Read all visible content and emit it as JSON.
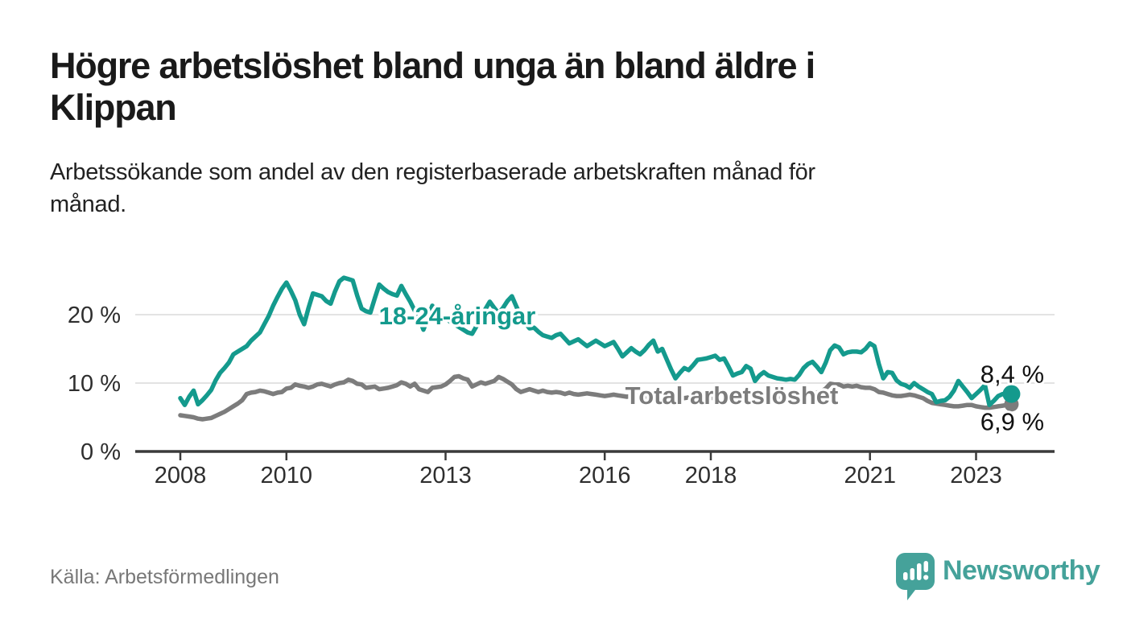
{
  "header": {
    "title": "Högre arbetslöshet bland unga än bland äldre i\nKlippan",
    "subtitle": "Arbetssökande som andel av den registerbaserade arbetskraften månad för\nmånad."
  },
  "footer": {
    "source_label": "Källa: Arbetsförmedlingen",
    "brand": {
      "name": "Newsworthy",
      "icon": "newsworthy-speech-bubble-bar-chart-icon",
      "color": "#45a29a"
    }
  },
  "chart_data": {
    "type": "line",
    "title": "Högre arbetslöshet bland unga än bland äldre i Klippan",
    "x_unit": "month",
    "x_start_year": 2008,
    "x_end_label_year": 2023.67,
    "xlabel": "",
    "ylabel": "Arbetssökande som andel av den registerbaserade arbetskraften",
    "ylim": [
      0,
      27
    ],
    "grid": true,
    "legend_position": "inline-labels",
    "axis_color": "#3a3a3a",
    "grid_color": "#dadada",
    "tick_label_color": "#2e2e2e",
    "value_label_color": "#111111",
    "y_ticks": [
      {
        "value": 0,
        "label": "0 %"
      },
      {
        "value": 10,
        "label": "10 %"
      },
      {
        "value": 20,
        "label": "20 %"
      }
    ],
    "x_ticks": [
      {
        "year": 2008,
        "label": "2008"
      },
      {
        "year": 2010,
        "label": "2010"
      },
      {
        "year": 2013,
        "label": "2013"
      },
      {
        "year": 2016,
        "label": "2016"
      },
      {
        "year": 2018,
        "label": "2018"
      },
      {
        "year": 2021,
        "label": "2021"
      },
      {
        "year": 2023,
        "label": "2023"
      }
    ],
    "series": [
      {
        "name": "Total arbetslöshet",
        "color": "#7c7c7c",
        "end_value": 6.9,
        "end_label": "6,9 %",
        "values": [
          5.3,
          5.2,
          5.1,
          5.0,
          4.8,
          4.7,
          4.8,
          4.9,
          5.2,
          5.5,
          5.8,
          6.2,
          6.6,
          7.0,
          7.5,
          8.4,
          8.6,
          8.7,
          8.9,
          8.8,
          8.6,
          8.4,
          8.6,
          8.7,
          9.2,
          9.3,
          9.8,
          9.6,
          9.5,
          9.3,
          9.5,
          9.8,
          9.9,
          9.7,
          9.5,
          9.8,
          10.0,
          10.1,
          10.5,
          10.3,
          9.9,
          9.8,
          9.3,
          9.4,
          9.5,
          9.1,
          9.2,
          9.3,
          9.5,
          9.7,
          10.1,
          9.9,
          9.5,
          9.9,
          9.1,
          8.9,
          8.7,
          9.3,
          9.4,
          9.5,
          9.8,
          10.3,
          10.9,
          11.0,
          10.7,
          10.5,
          9.5,
          9.8,
          10.1,
          9.9,
          10.1,
          10.3,
          10.9,
          10.6,
          10.2,
          9.8,
          9.1,
          8.7,
          8.9,
          9.1,
          8.9,
          8.7,
          8.9,
          8.7,
          8.6,
          8.7,
          8.6,
          8.4,
          8.6,
          8.4,
          8.3,
          8.4,
          8.5,
          8.4,
          8.3,
          8.2,
          8.1,
          8.2,
          8.3,
          8.2,
          8.1,
          8.0,
          8.1,
          8.2,
          8.1,
          8.0,
          7.9,
          8.0,
          8.0,
          8.1,
          8.0,
          7.9,
          7.8,
          7.9,
          7.8,
          7.9,
          7.8,
          7.9,
          7.8,
          7.9,
          7.8,
          7.9,
          7.8,
          7.7,
          7.6,
          7.7,
          7.8,
          7.7,
          7.8,
          7.7,
          7.8,
          7.9,
          7.8,
          7.9,
          7.8,
          7.9,
          8.0,
          7.9,
          8.0,
          8.1,
          8.0,
          8.1,
          8.2,
          8.3,
          8.6,
          8.8,
          9.2,
          9.9,
          9.8,
          9.8,
          9.5,
          9.6,
          9.5,
          9.6,
          9.4,
          9.3,
          9.3,
          9.1,
          8.7,
          8.6,
          8.4,
          8.2,
          8.1,
          8.1,
          8.2,
          8.3,
          8.2,
          8.0,
          7.8,
          7.4,
          7.1,
          7.0,
          6.9,
          6.8,
          6.7,
          6.6,
          6.6,
          6.7,
          6.8,
          6.8,
          6.6,
          6.5,
          6.4,
          6.4,
          6.5,
          6.6,
          6.7,
          6.8,
          6.9
        ]
      },
      {
        "name": "18-24-åringar",
        "color": "#149a8d",
        "end_value": 8.4,
        "end_label": "8,4 %",
        "values": [
          7.8,
          6.8,
          8.0,
          8.9,
          6.9,
          7.5,
          8.2,
          9.0,
          10.4,
          11.5,
          12.2,
          13.0,
          14.2,
          14.6,
          15.0,
          15.4,
          16.2,
          16.8,
          17.4,
          18.6,
          19.8,
          21.3,
          22.6,
          23.8,
          24.7,
          23.5,
          22.1,
          20.0,
          18.6,
          21.0,
          23.1,
          22.9,
          22.7,
          22.0,
          21.6,
          23.4,
          24.9,
          25.4,
          25.2,
          25.0,
          22.8,
          20.9,
          20.5,
          20.3,
          22.4,
          24.4,
          23.8,
          23.3,
          23.0,
          22.8,
          24.2,
          23.0,
          21.9,
          20.6,
          19.5,
          17.8,
          19.5,
          21.3,
          20.5,
          19.8,
          19.4,
          19.0,
          18.6,
          18.2,
          17.8,
          17.4,
          17.2,
          18.3,
          19.6,
          20.8,
          21.9,
          21.0,
          20.2,
          21.0,
          22.0,
          22.7,
          21.2,
          19.8,
          18.8,
          18.0,
          18.1,
          17.5,
          17.0,
          16.8,
          16.6,
          17.0,
          17.2,
          16.5,
          15.8,
          16.1,
          16.4,
          15.9,
          15.4,
          15.8,
          16.2,
          15.8,
          15.4,
          15.7,
          16.0,
          15.0,
          13.9,
          14.5,
          15.1,
          14.6,
          14.2,
          14.8,
          15.6,
          16.2,
          14.6,
          15.0,
          13.5,
          12.0,
          10.7,
          11.5,
          12.2,
          11.9,
          12.6,
          13.4,
          13.5,
          13.6,
          13.8,
          14.0,
          13.4,
          13.6,
          12.4,
          11.1,
          11.4,
          11.6,
          12.5,
          12.1,
          10.3,
          11.1,
          11.6,
          11.1,
          10.9,
          10.7,
          10.6,
          10.5,
          10.6,
          10.5,
          11.2,
          12.2,
          12.8,
          13.1,
          12.4,
          11.6,
          13.0,
          14.8,
          15.5,
          15.2,
          14.2,
          14.5,
          14.6,
          14.6,
          14.5,
          15.0,
          15.8,
          15.4,
          12.8,
          10.7,
          11.6,
          11.5,
          10.4,
          9.9,
          9.7,
          9.3,
          10.0,
          9.5,
          9.1,
          8.7,
          8.4,
          7.2,
          7.4,
          7.5,
          8.0,
          8.9,
          10.3,
          9.5,
          8.7,
          7.8,
          8.4,
          9.0,
          9.7,
          6.8,
          7.4,
          8.1,
          8.4,
          8.3,
          8.4
        ]
      }
    ]
  }
}
